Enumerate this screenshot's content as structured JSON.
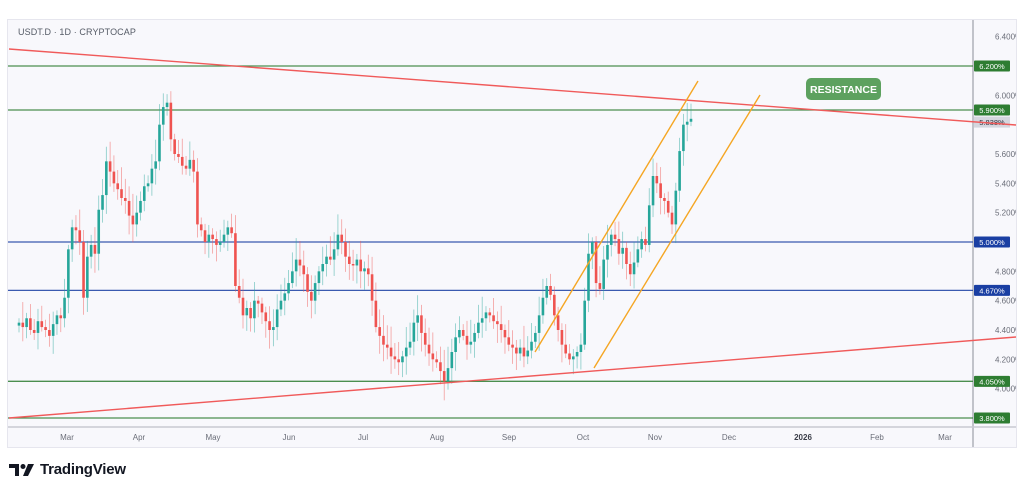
{
  "header": {
    "symbol_line": "USDT.D · 1D · CRYPTOCAP"
  },
  "footer": {
    "brand": "TradingView"
  },
  "annotation": {
    "label": "RESISTANCE",
    "color": "#5da15f"
  },
  "price_tag": {
    "value": "5.838%"
  },
  "colors": {
    "up": "#26a69a",
    "down": "#ef5350",
    "green_level": "#2e7d32",
    "blue_level": "#1a3fa3",
    "trendline": "#f05a5a",
    "channel": "#f5a623"
  },
  "chart_data": {
    "type": "candlestick",
    "title": "USDT.D · 1D · CRYPTOCAP",
    "xlabel": "",
    "ylabel": "",
    "x_ticks": [
      "Mar",
      "Apr",
      "May",
      "Jun",
      "Jul",
      "Aug",
      "Sep",
      "Oct",
      "Nov",
      "Dec",
      "2026",
      "Feb",
      "Mar"
    ],
    "y_ticks": [
      "6.400%",
      "6.000%",
      "5.600%",
      "5.400%",
      "5.200%",
      "4.800%",
      "4.600%",
      "4.400%",
      "4.200%",
      "4.000%"
    ],
    "ylim": [
      3.78,
      6.5
    ],
    "horizontal_levels": [
      {
        "value": 6.2,
        "label": "6.200%",
        "color": "green"
      },
      {
        "value": 5.9,
        "label": "5.900%",
        "color": "green"
      },
      {
        "value": 5.0,
        "label": "5.000%",
        "color": "blue"
      },
      {
        "value": 4.67,
        "label": "4.670%",
        "color": "blue"
      },
      {
        "value": 4.05,
        "label": "4.050%",
        "color": "green"
      },
      {
        "value": 3.8,
        "label": "3.800%",
        "color": "green"
      }
    ],
    "trendlines": [
      {
        "name": "descending resistance",
        "from": [
          "Feb",
          6.32
        ],
        "to": [
          "Mar 2026",
          5.82
        ]
      },
      {
        "name": "ascending support",
        "from": [
          "Feb",
          3.8
        ],
        "to": [
          "Mar 2026",
          4.35
        ]
      }
    ],
    "channel": {
      "name": "ascending channel",
      "upper": [
        [
          "mid Sep",
          4.27
        ],
        [
          "mid Nov",
          6.06
        ]
      ],
      "lower": [
        [
          "early Oct",
          4.15
        ],
        [
          "early Dec",
          6.0
        ]
      ]
    },
    "last_price": 5.838,
    "legend": [],
    "grid": false,
    "approx_closes": [
      4.45,
      4.42,
      4.48,
      4.4,
      4.38,
      4.46,
      4.42,
      4.4,
      4.36,
      4.44,
      4.5,
      4.48,
      4.62,
      4.95,
      5.1,
      5.08,
      5.0,
      4.62,
      4.9,
      4.98,
      4.92,
      5.22,
      5.32,
      5.55,
      5.48,
      5.4,
      5.36,
      5.3,
      5.28,
      5.18,
      5.12,
      5.2,
      5.28,
      5.38,
      5.4,
      5.5,
      5.55,
      5.8,
      5.92,
      5.95,
      5.7,
      5.6,
      5.58,
      5.52,
      5.5,
      5.56,
      5.48,
      5.12,
      5.08,
      5.0,
      5.05,
      5.02,
      4.98,
      5.0,
      5.05,
      5.1,
      5.06,
      4.7,
      4.62,
      4.5,
      4.55,
      4.48,
      4.6,
      4.58,
      4.52,
      4.46,
      4.4,
      4.42,
      4.54,
      4.6,
      4.65,
      4.72,
      4.8,
      4.88,
      4.84,
      4.78,
      4.66,
      4.6,
      4.72,
      4.8,
      4.85,
      4.9,
      4.88,
      4.95,
      5.05,
      5.0,
      4.9,
      4.85,
      4.84,
      4.88,
      4.8,
      4.82,
      4.78,
      4.6,
      4.42,
      4.36,
      4.3,
      4.28,
      4.22,
      4.2,
      4.18,
      4.22,
      4.28,
      4.32,
      4.45,
      4.5,
      4.38,
      4.3,
      4.24,
      4.2,
      4.18,
      4.12,
      4.05,
      4.14,
      4.25,
      4.35,
      4.4,
      4.36,
      4.3,
      4.32,
      4.38,
      4.45,
      4.48,
      4.52,
      4.5,
      4.46,
      4.44,
      4.4,
      4.35,
      4.3,
      4.28,
      4.24,
      4.28,
      4.22,
      4.26,
      4.32,
      4.38,
      4.5,
      4.62,
      4.7,
      4.64,
      4.5,
      4.4,
      4.3,
      4.24,
      4.2,
      4.22,
      4.25,
      4.3,
      4.6,
      4.92,
      5.0,
      4.72,
      4.68,
      4.88,
      4.98,
      5.05,
      5.02,
      4.92,
      4.96,
      4.85,
      4.78,
      4.86,
      4.95,
      5.02,
      4.98,
      5.25,
      5.45,
      5.4,
      5.3,
      5.28,
      5.2,
      5.12,
      5.35,
      5.62,
      5.8,
      5.82,
      5.84
    ]
  }
}
